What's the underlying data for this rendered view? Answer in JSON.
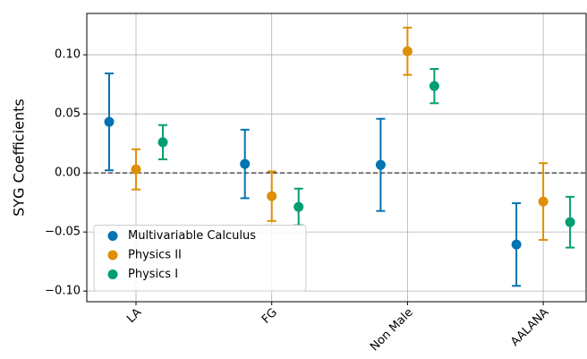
{
  "chart_data": {
    "type": "errorbar",
    "ylabel": "SYG Coefficients",
    "categories": [
      "LA",
      "FG",
      "Non Male",
      "AALANA"
    ],
    "series": [
      {
        "name": "Multivariable Calculus",
        "color": "#0173b2",
        "values": [
          0.0432,
          0.0076,
          0.0068,
          -0.0606
        ],
        "errors": [
          0.041,
          0.029,
          0.039,
          0.035
        ]
      },
      {
        "name": "Physics II",
        "color": "#de8f05",
        "values": [
          0.003,
          -0.0197,
          0.103,
          -0.0242
        ],
        "errors": [
          0.017,
          0.021,
          0.02,
          0.0325
        ]
      },
      {
        "name": "Physics I",
        "color": "#029e73",
        "values": [
          0.026,
          -0.0288,
          0.0735,
          -0.0417
        ],
        "errors": [
          0.0145,
          0.0155,
          0.0145,
          0.0215
        ]
      }
    ],
    "ylim": [
      -0.109,
      0.135
    ],
    "yticks": [
      {
        "value": -0.1,
        "label": "−0.10"
      },
      {
        "value": -0.05,
        "label": "−0.05"
      },
      {
        "value": 0,
        "label": "0.00"
      },
      {
        "value": 0.05,
        "label": "0.05"
      },
      {
        "value": 0.1,
        "label": "0.10"
      }
    ],
    "reference_line": 0,
    "grid": true,
    "legend": "lower left"
  }
}
